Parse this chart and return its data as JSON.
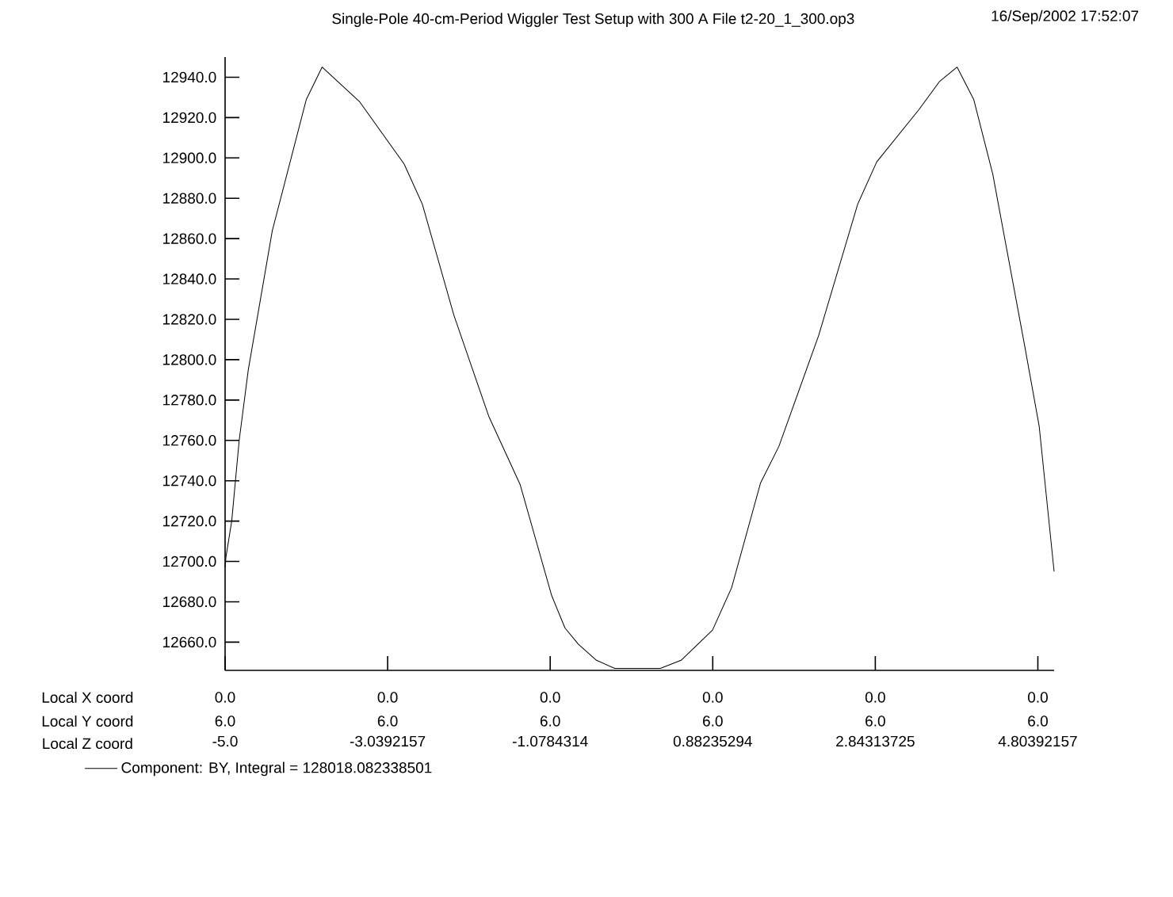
{
  "chart_data": {
    "type": "line",
    "title": "Single-Pole 40-cm-Period Wiggler Test Setup with 300 A  File t2-20_1_300.op3",
    "xlabel": "Local Z coord",
    "annotations": [
      "16/Sep/2002 17:52:07",
      "Local X coord",
      "0.0",
      "0.0",
      "0.0",
      "0.0",
      "0.0",
      "0.0",
      "Local Y coord",
      "6.0",
      "6.0",
      "6.0",
      "6.0",
      "6.0",
      "6.0"
    ],
    "series": [
      {
        "name": "Component:  BY, Integral = 128018.082338501",
        "color": "#000000",
        "x": [
          -5.0,
          -4.99,
          -4.92,
          -4.83,
          -4.72,
          -4.43,
          -4.02,
          -3.83,
          -3.38,
          -2.84,
          -2.62,
          -2.24,
          -1.82,
          -1.44,
          -1.06,
          -0.9,
          -0.74,
          -0.52,
          -0.3,
          0.1,
          0.25,
          0.5,
          0.88,
          1.11,
          1.46,
          1.68,
          2.16,
          2.63,
          2.86,
          3.37,
          3.62,
          3.83,
          4.03,
          4.26,
          4.45,
          4.64,
          4.82,
          5.0
        ],
        "values": [
          12697,
          12702,
          12720,
          12760,
          12795,
          12864,
          12929,
          12945,
          12928,
          12897,
          12877,
          12822,
          12772,
          12738,
          12683,
          12667,
          12659,
          12651,
          12647,
          12647,
          12647,
          12651,
          12666,
          12687,
          12739,
          12757,
          12812,
          12877,
          12898,
          12924,
          12938,
          12945,
          12929,
          12892,
          12850,
          12808,
          12767,
          12695
        ]
      }
    ],
    "xlim": [
      -5.0,
      5.0
    ],
    "ylim": [
      12646,
      12950
    ],
    "xticks": [
      {
        "value": -5.0,
        "label": "-5.0"
      },
      {
        "value": -3.0392157,
        "label": "-3.0392157"
      },
      {
        "value": -1.0784314,
        "label": "-1.0784314"
      },
      {
        "value": 0.88235294,
        "label": "0.88235294"
      },
      {
        "value": 2.84313725,
        "label": "2.84313725"
      },
      {
        "value": 4.80392157,
        "label": "4.80392157"
      }
    ],
    "yticks": [
      {
        "value": 12660,
        "label": "12660.0"
      },
      {
        "value": 12680,
        "label": "12680.0"
      },
      {
        "value": 12700,
        "label": "12700.0"
      },
      {
        "value": 12720,
        "label": "12720.0"
      },
      {
        "value": 12740,
        "label": "12740.0"
      },
      {
        "value": 12760,
        "label": "12760.0"
      },
      {
        "value": 12780,
        "label": "12780.0"
      },
      {
        "value": 12800,
        "label": "12800.0"
      },
      {
        "value": 12820,
        "label": "12820.0"
      },
      {
        "value": 12840,
        "label": "12840.0"
      },
      {
        "value": 12860,
        "label": "12860.0"
      },
      {
        "value": 12880,
        "label": "12880.0"
      },
      {
        "value": 12900,
        "label": "12900.0"
      },
      {
        "value": 12920,
        "label": "12920.0"
      },
      {
        "value": 12940,
        "label": "12940.0"
      }
    ],
    "grid": false,
    "legend": "bottom left",
    "marker": "none",
    "line_style": "solid"
  }
}
